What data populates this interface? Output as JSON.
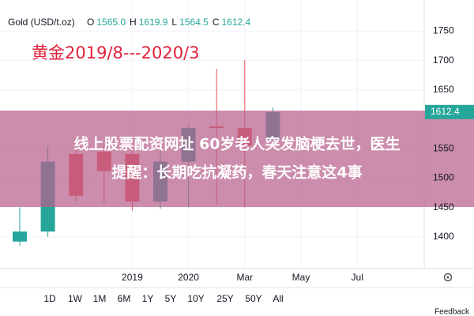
{
  "chart_data": {
    "type": "candlestick",
    "symbol": "Gold (USD/t.oz)",
    "header": [
      {
        "key": "O",
        "text": "1565.0"
      },
      {
        "key": "H",
        "text": "1619.9"
      },
      {
        "key": "L",
        "text": "1564.5"
      },
      {
        "key": "C",
        "text": "1612.4"
      }
    ],
    "title": "黄金2019/8---2020/3",
    "categories": [
      null,
      null,
      null,
      null,
      "2019",
      null,
      "2020",
      null,
      "Mar",
      null,
      "May",
      null,
      "Jul",
      null,
      null
    ],
    "open": [
      1392,
      1409,
      1541,
      1545,
      1541,
      1460,
      1528,
      1588,
      1585,
      1565,
      null,
      null,
      null,
      null,
      null
    ],
    "high": [
      1450,
      1555,
      1557,
      1557,
      1557,
      1557,
      1590,
      1686,
      1701,
      1619.9,
      null,
      null,
      null,
      null,
      null
    ],
    "low": [
      1385,
      1400,
      1460,
      1457,
      1445,
      1448,
      1450,
      1455,
      1450,
      1564.5,
      null,
      null,
      null,
      null,
      null
    ],
    "close": [
      1409,
      1528,
      1470,
      1512,
      1460,
      1528,
      1585,
      1585,
      1555,
      1612.4,
      null,
      null,
      null,
      null,
      null
    ],
    "up_color": "#26a69a",
    "down_color": "#ef5350",
    "ylim": [
      1346,
      1803
    ],
    "yticks": [
      1400,
      1450,
      1500,
      1550,
      1650,
      1700,
      1750
    ],
    "grid": true,
    "banner": [
      "线上股票配资网址 60岁老人突发脑梗去世，医生",
      "提醒：长期吃抗凝药，春天注意这4事"
    ],
    "ranges": [
      "1D",
      "1W",
      "1M",
      "6M",
      "1Y",
      "5Y",
      "10Y",
      "25Y",
      "50Y",
      "All"
    ],
    "feedback": "Feedback"
  }
}
